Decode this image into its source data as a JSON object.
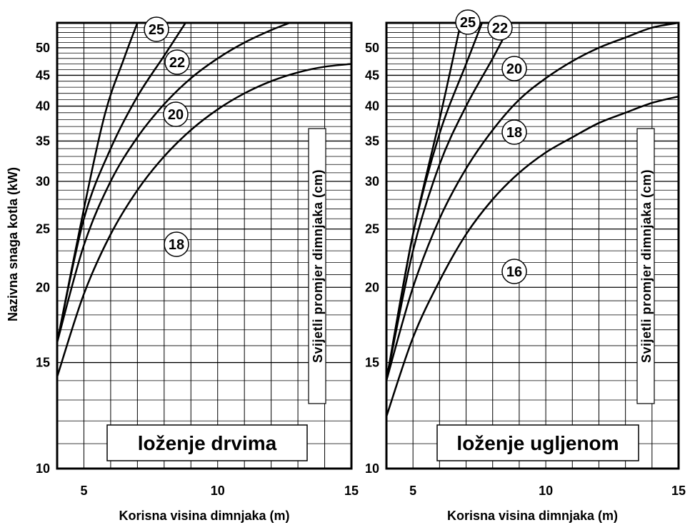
{
  "y_axis_label": "Nazivna snaga kotla (kW)",
  "chart_data": [
    {
      "type": "line",
      "title": "loženje drvima",
      "xlabel": "Korisna visina dimnjaka (m)",
      "ylabel": "Nazivna snaga kotla (kW)",
      "side_label": "Svijetli promjer dimnjaka (cm)",
      "xlim": [
        4,
        15
      ],
      "ylim": [
        10,
        55
      ],
      "y_scale": "log",
      "x_ticks": [
        "5",
        "10",
        "15"
      ],
      "y_ticks": [
        "10",
        "15",
        "20",
        "25",
        "30",
        "35",
        "40",
        "45",
        "50"
      ],
      "grid": true,
      "series": [
        {
          "name": "18",
          "x": [
            4,
            5,
            6,
            7,
            8,
            9,
            10,
            11,
            12,
            13,
            14,
            15
          ],
          "y": [
            14.2,
            19.5,
            24.5,
            29,
            33,
            36.5,
            39.5,
            42,
            44,
            45.5,
            46.5,
            47
          ]
        },
        {
          "name": "20",
          "x": [
            4,
            5,
            6,
            7,
            8,
            9,
            10,
            11,
            12,
            12.7
          ],
          "y": [
            16.2,
            23.5,
            30,
            35.5,
            40.3,
            44.5,
            48,
            51,
            53.5,
            55
          ]
        },
        {
          "name": "22",
          "x": [
            4,
            5,
            6,
            7,
            8,
            8.8
          ],
          "y": [
            16.2,
            26,
            34,
            41.5,
            48.5,
            55
          ]
        },
        {
          "name": "25",
          "x": [
            4,
            5,
            5.8,
            6.5,
            7.0
          ],
          "y": [
            16.2,
            27,
            39,
            48,
            55
          ]
        }
      ]
    },
    {
      "type": "line",
      "title": "loženje ugljenom",
      "xlabel": "Korisna visina dimnjaka (m)",
      "ylabel": "Nazivna snaga kotla (kW)",
      "side_label": "Svijetli promjer dimnjaka (cm)",
      "xlim": [
        4,
        15
      ],
      "ylim": [
        10,
        55
      ],
      "y_scale": "log",
      "x_ticks": [
        "5",
        "10",
        "15"
      ],
      "y_ticks": [
        "10",
        "15",
        "20",
        "25",
        "30",
        "35",
        "40",
        "45",
        "50"
      ],
      "grid": true,
      "series": [
        {
          "name": "16",
          "x": [
            4,
            5,
            6,
            7,
            8,
            9,
            10,
            11,
            12,
            13,
            14,
            15
          ],
          "y": [
            12.2,
            16.5,
            20.5,
            24.5,
            28,
            31,
            33.5,
            35.5,
            37.5,
            39,
            40.5,
            41.5
          ]
        },
        {
          "name": "18",
          "x": [
            4,
            5,
            6,
            7,
            8,
            9,
            10,
            11,
            12,
            13,
            14,
            15
          ],
          "y": [
            14,
            20,
            26,
            31.5,
            36.5,
            41,
            44.5,
            47.5,
            50,
            52,
            54,
            55
          ]
        },
        {
          "name": "20",
          "x": [
            4,
            5,
            6,
            7,
            8,
            8.7
          ],
          "y": [
            14,
            23,
            32,
            40,
            48,
            55
          ]
        },
        {
          "name": "22",
          "x": [
            4,
            5,
            6,
            7,
            7.6
          ],
          "y": [
            14,
            24.5,
            36,
            47,
            55
          ]
        },
        {
          "name": "25",
          "x": [
            4,
            5,
            6,
            6.8
          ],
          "y": [
            14,
            24.5,
            38,
            55
          ]
        }
      ]
    }
  ]
}
